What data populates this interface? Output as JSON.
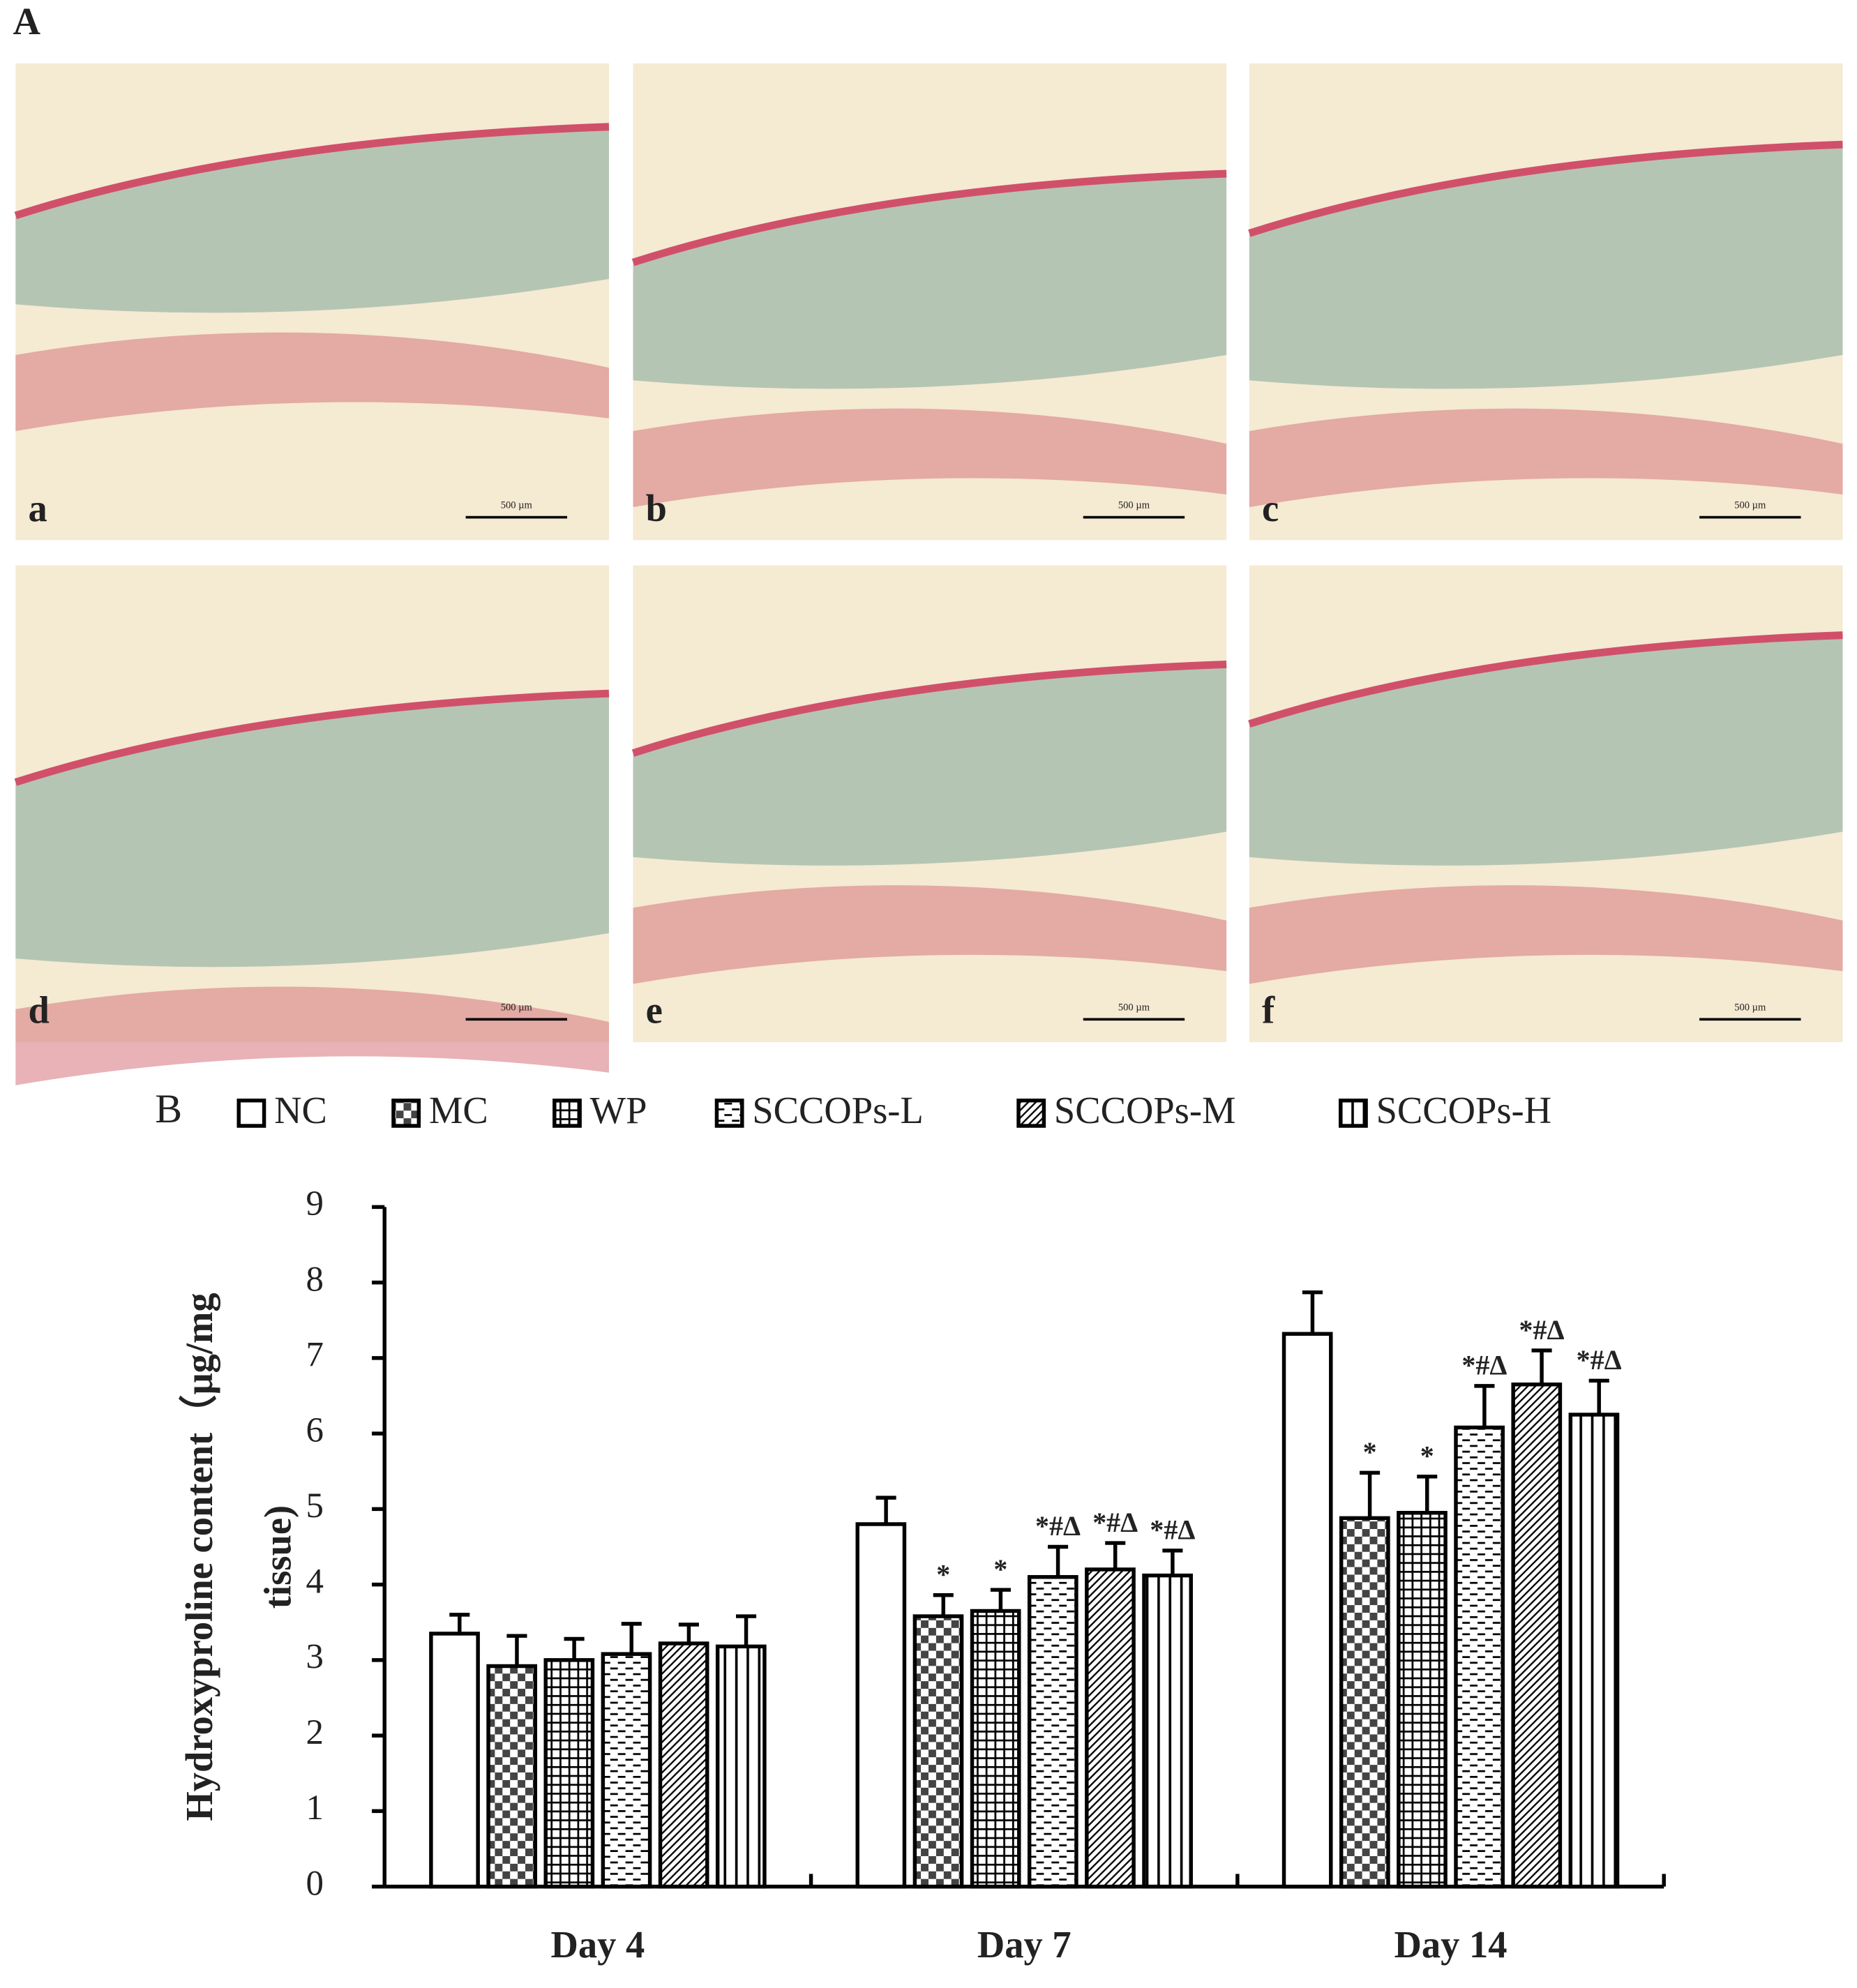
{
  "panel_labels": {
    "A": "A",
    "B": "B"
  },
  "micrographs": [
    {
      "label": "a",
      "scale_bar": "500 µm"
    },
    {
      "label": "b",
      "scale_bar": "500 µm"
    },
    {
      "label": "c",
      "scale_bar": "500 µm"
    },
    {
      "label": "d",
      "scale_bar": "500 µm"
    },
    {
      "label": "e",
      "scale_bar": "500 µm"
    },
    {
      "label": "f",
      "scale_bar": "500 µm"
    }
  ],
  "chart_data": {
    "type": "bar",
    "ylabel": [
      "Hydroxyproline content（μg/mg",
      "tissue)"
    ],
    "categories": [
      "Day 4",
      "Day 7",
      "Day 14"
    ],
    "ylim": [
      0,
      9
    ],
    "yticks": [
      0,
      1,
      2,
      3,
      4,
      5,
      6,
      7,
      8,
      9
    ],
    "series": [
      {
        "name": "NC",
        "pattern": "none",
        "values": [
          3.35,
          4.8,
          7.32
        ],
        "errors": [
          0.25,
          0.35,
          0.55
        ],
        "significance": [
          null,
          null,
          null
        ]
      },
      {
        "name": "MC",
        "pattern": "checker",
        "values": [
          2.92,
          3.58,
          4.88
        ],
        "errors": [
          0.4,
          0.28,
          0.6
        ],
        "significance": [
          null,
          "*",
          "*"
        ]
      },
      {
        "name": "WP",
        "pattern": "grid",
        "values": [
          3.0,
          3.65,
          4.95
        ],
        "errors": [
          0.28,
          0.28,
          0.48
        ],
        "significance": [
          null,
          "*",
          "*"
        ]
      },
      {
        "name": "SCCOPs-L",
        "pattern": "hdash",
        "values": [
          3.08,
          4.1,
          6.08
        ],
        "errors": [
          0.4,
          0.4,
          0.55
        ],
        "significance": [
          null,
          "*#Δ",
          "*#Δ"
        ]
      },
      {
        "name": "SCCOPs-M",
        "pattern": "diag",
        "values": [
          3.22,
          4.2,
          6.65
        ],
        "errors": [
          0.25,
          0.35,
          0.45
        ],
        "significance": [
          null,
          "*#Δ",
          "*#Δ"
        ]
      },
      {
        "name": "SCCOPs-H",
        "pattern": "vstripe",
        "values": [
          3.18,
          4.12,
          6.25
        ],
        "errors": [
          0.4,
          0.33,
          0.45
        ],
        "significance": [
          null,
          "*#Δ",
          "*#Δ"
        ]
      }
    ]
  }
}
